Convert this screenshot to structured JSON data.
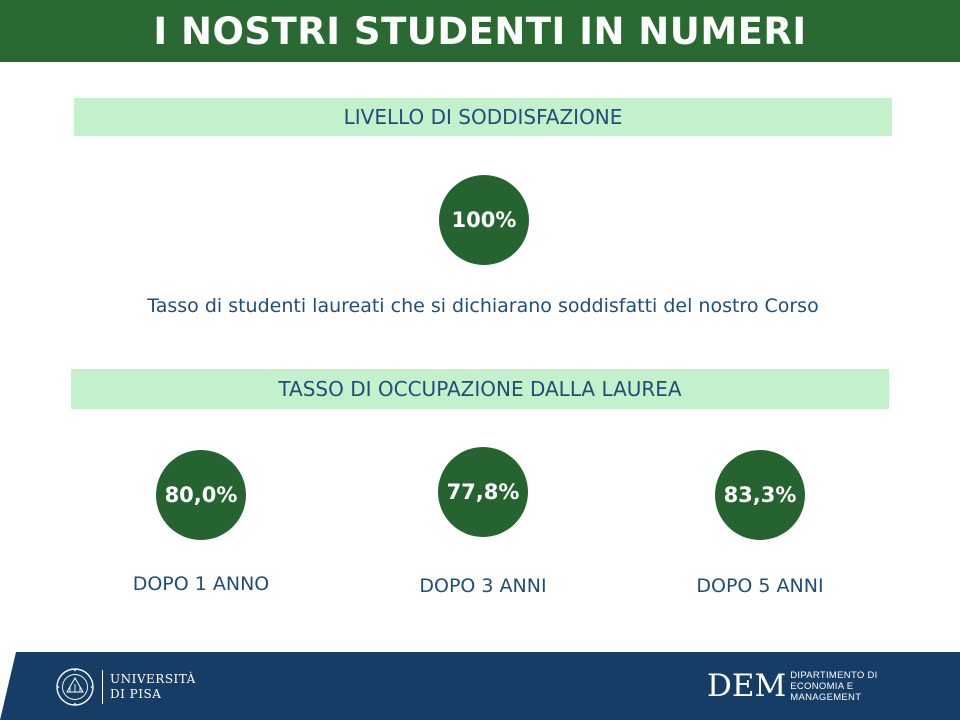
{
  "header": {
    "title": "I NOSTRI STUDENTI IN NUMERI"
  },
  "satisfaction": {
    "heading": "LIVELLO DI SODDISFAZIONE",
    "value": "100%",
    "description": "Tasso di studenti laureati che si dichiarano soddisfatti del nostro Corso"
  },
  "employment": {
    "heading": "TASSO DI OCCUPAZIONE DALLA LAUREA",
    "stats": [
      {
        "value": "80,0%",
        "label": "DOPO 1 ANNO"
      },
      {
        "value": "77,8%",
        "label": "DOPO 3 ANNI"
      },
      {
        "value": "83,3%",
        "label": "DOPO 5 ANNI"
      }
    ]
  },
  "footer": {
    "university": {
      "line1": "UNIVERSITÀ",
      "line2": "DI PISA"
    },
    "department": {
      "abbr": "DEM",
      "line1": "DIPARTIMENTO DI",
      "line2": "ECONOMIA E",
      "line3": "MANAGEMENT"
    }
  },
  "colors": {
    "primary_green": "#2a6a32",
    "light_green": "#c3f1cc",
    "text_blue": "#1e4e79",
    "footer_navy": "#163d66"
  }
}
